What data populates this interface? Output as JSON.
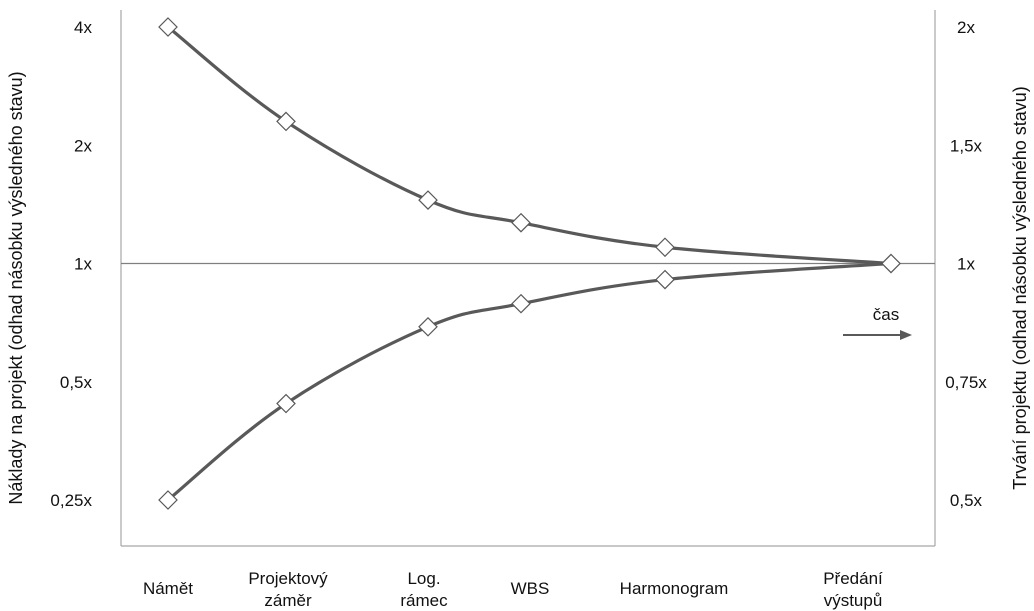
{
  "chart_data": {
    "type": "line",
    "title": "",
    "categories": [
      "Námět",
      "Projektový záměr",
      "Log. rámec",
      "WBS",
      "Harmonogram",
      "Předání výstupů"
    ],
    "category_lines": [
      [
        "Námět"
      ],
      [
        "Projektový",
        "záměr"
      ],
      [
        "Log.",
        "rámec"
      ],
      [
        "WBS"
      ],
      [
        "Harmonogram"
      ],
      [
        "Předání",
        "výstupů"
      ]
    ],
    "y_left": {
      "label": "Náklady na projekt (odhad násobku výsledného stavu)",
      "ticks": [
        {
          "value": 4,
          "label": "4x"
        },
        {
          "value": 2,
          "label": "2x"
        },
        {
          "value": 1,
          "label": "1x"
        },
        {
          "value": 0.5,
          "label": "0,5x"
        },
        {
          "value": 0.25,
          "label": "0,25x"
        }
      ],
      "scale": "log2",
      "range": [
        0.25,
        4
      ]
    },
    "y_right": {
      "label": "Trvání projektu (odhad násobku výsledného stavu)",
      "ticks": [
        {
          "value": 2,
          "label": "2x"
        },
        {
          "value": 1.5,
          "label": "1,5x"
        },
        {
          "value": 1,
          "label": "1x"
        },
        {
          "value": 0.75,
          "label": "0,75x"
        },
        {
          "value": 0.5,
          "label": "0,5x"
        }
      ]
    },
    "series": [
      {
        "x": [
          0,
          1,
          2,
          3,
          4,
          5.6
        ],
        "values": [
          4,
          2.3,
          1.45,
          1.27,
          1.1,
          1.0
        ],
        "color": "#595959",
        "marker": "diamond"
      },
      {
        "x": [
          0,
          1,
          2,
          3,
          4,
          5.6
        ],
        "values": [
          0.25,
          0.44,
          0.69,
          0.79,
          0.91,
          1.0
        ],
        "color": "#595959",
        "marker": "diamond"
      }
    ],
    "reference_line": {
      "value": 1,
      "color": "#7f7f7f"
    },
    "annotation": {
      "text": "čas",
      "arrow": "right"
    },
    "grid": false
  }
}
